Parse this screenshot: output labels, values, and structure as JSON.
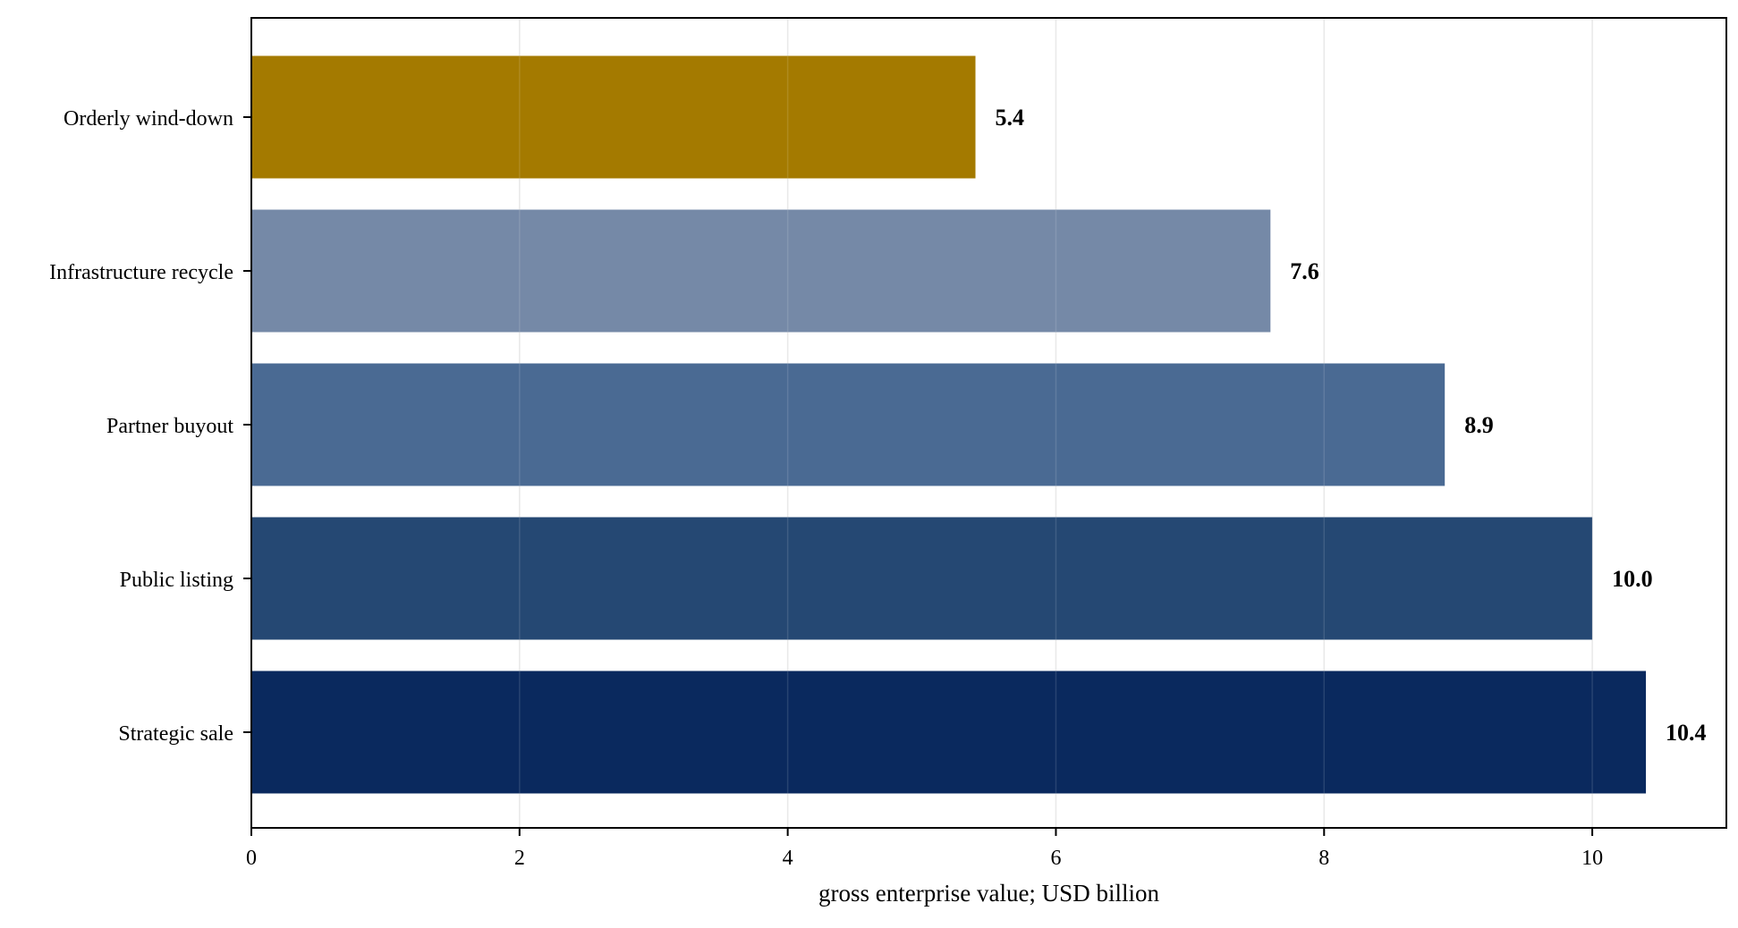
{
  "chart_data": {
    "type": "bar",
    "orientation": "horizontal",
    "title": "",
    "xlabel": "gross enterprise value; USD billion",
    "ylabel": "",
    "xlim": [
      0,
      11
    ],
    "xticks": [
      0,
      2,
      4,
      6,
      8,
      10
    ],
    "grid": "vertical",
    "legend": "none",
    "categories": [
      "Orderly wind-down",
      "Infrastructure recycle",
      "Partner buyout",
      "Public listing",
      "Strategic sale"
    ],
    "values": [
      5.4,
      7.6,
      8.9,
      10.0,
      10.4
    ],
    "value_labels": [
      "5.4",
      "7.6",
      "8.9",
      "10.0",
      "10.4"
    ],
    "colors": [
      "#a47a00",
      "#7589a7",
      "#4a6a93",
      "#254873",
      "#0a295e"
    ],
    "grid_color": "#e6e6e6",
    "axis_color": "#000000"
  }
}
